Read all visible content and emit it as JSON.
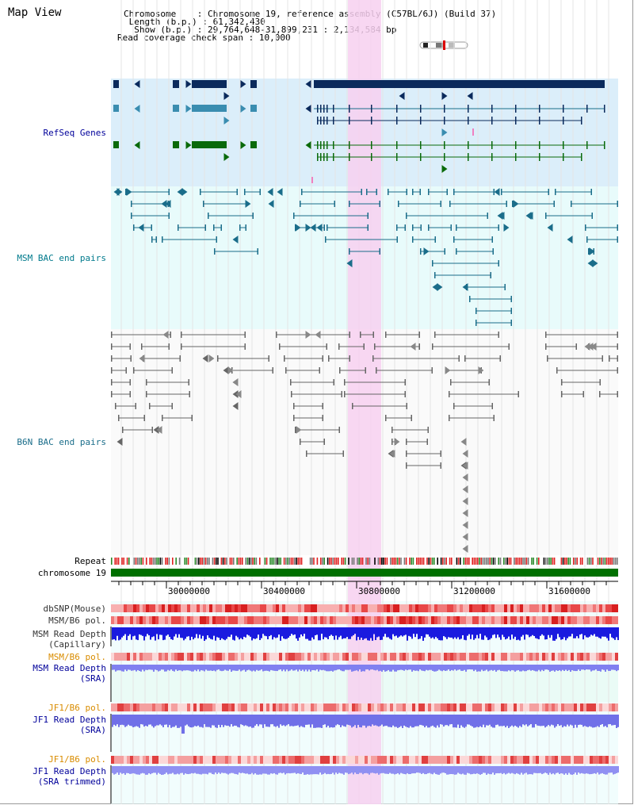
{
  "header": {
    "title": "Map View",
    "chromosome_label": "Chromosome",
    "chromosome_value": "Chromosome 19, reference assembly (C57BL/6J) (Build 37)",
    "length_label": "Length (b.p.)",
    "length_value": "61,342,430",
    "show_label": "Show (b.p.)",
    "show_value": "29,764,648-31,899,231 : 2,134,584 bp",
    "coverage_label": "Read coverage check span",
    "coverage_value": "10,000",
    "sep": ":"
  },
  "tracks": {
    "refseq": "RefSeq Genes",
    "msm_bac": "MSM BAC end pairs",
    "b6n_bac": "B6N BAC end pairs",
    "repeat": "Repeat",
    "chromosome": "chromosome 19",
    "dbsnp": "dbSNP(Mouse)",
    "msm_b6_pol": "MSM/B6 pol.",
    "msm_read_depth_cap": "MSM Read Depth\n(Capillary)",
    "msm_b6_pol2": "MSM/B6 pol.",
    "msm_read_depth_sra": "MSM Read Depth\n(SRA)",
    "jf1_b6_pol": "JF1/B6 pol.",
    "jf1_read_depth_sra": "JF1 Read Depth\n(SRA)",
    "jf1_b6_pol2": "JF1/B6 pol.",
    "jf1_read_depth_trim": "JF1 Read Depth\n(SRA trimmed)"
  },
  "axis": {
    "ticks": [
      "30000000",
      "30400000",
      "30800000",
      "31200000",
      "31600000"
    ]
  },
  "colors": {
    "refseq_bg": "#dbeefa",
    "msm_bg": "#e8fbfb",
    "b6n_bg": "#f4f4f4",
    "highlight": "#f7d0f0",
    "gene_dark": "#0b2a5c",
    "gene_mid": "#3a8db0",
    "gene_green": "#0a6a0a",
    "msm_bac": "#1a6d8a",
    "b6n_bac": "#666666",
    "chrom": "#007000",
    "depth_blue": "#1a1adf",
    "depth_light": "#8080f0"
  }
}
